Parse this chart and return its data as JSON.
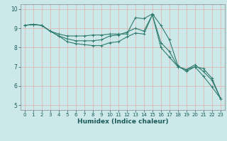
{
  "xlabel": "Humidex (Indice chaleur)",
  "background_color": "#cde8e8",
  "grid_color": "#c0d8d8",
  "line_color": "#2e7b6e",
  "xlim": [
    -0.5,
    23.5
  ],
  "ylim": [
    4.75,
    10.25
  ],
  "xticks": [
    0,
    1,
    2,
    3,
    4,
    5,
    6,
    7,
    8,
    9,
    10,
    11,
    12,
    13,
    14,
    15,
    16,
    17,
    18,
    19,
    20,
    21,
    22,
    23
  ],
  "yticks": [
    5,
    6,
    7,
    8,
    9,
    10
  ],
  "series": [
    [
      9.15,
      9.2,
      9.15,
      8.85,
      8.7,
      8.6,
      8.6,
      8.6,
      8.65,
      8.65,
      8.7,
      8.7,
      8.7,
      9.55,
      9.5,
      9.75,
      9.15,
      8.4,
      7.05,
      6.75,
      7.0,
      6.5,
      5.95,
      5.35
    ],
    [
      9.15,
      9.2,
      9.15,
      8.85,
      8.6,
      8.45,
      8.35,
      8.35,
      8.35,
      8.4,
      8.6,
      8.65,
      8.8,
      9.0,
      8.85,
      9.7,
      8.25,
      7.8,
      7.0,
      6.85,
      7.1,
      6.75,
      6.3,
      5.35
    ],
    [
      9.15,
      9.2,
      9.15,
      8.85,
      8.6,
      8.3,
      8.2,
      8.15,
      8.1,
      8.1,
      8.25,
      8.3,
      8.55,
      8.75,
      8.7,
      9.7,
      8.0,
      7.5,
      7.0,
      6.85,
      7.0,
      6.9,
      6.4,
      5.35
    ]
  ]
}
